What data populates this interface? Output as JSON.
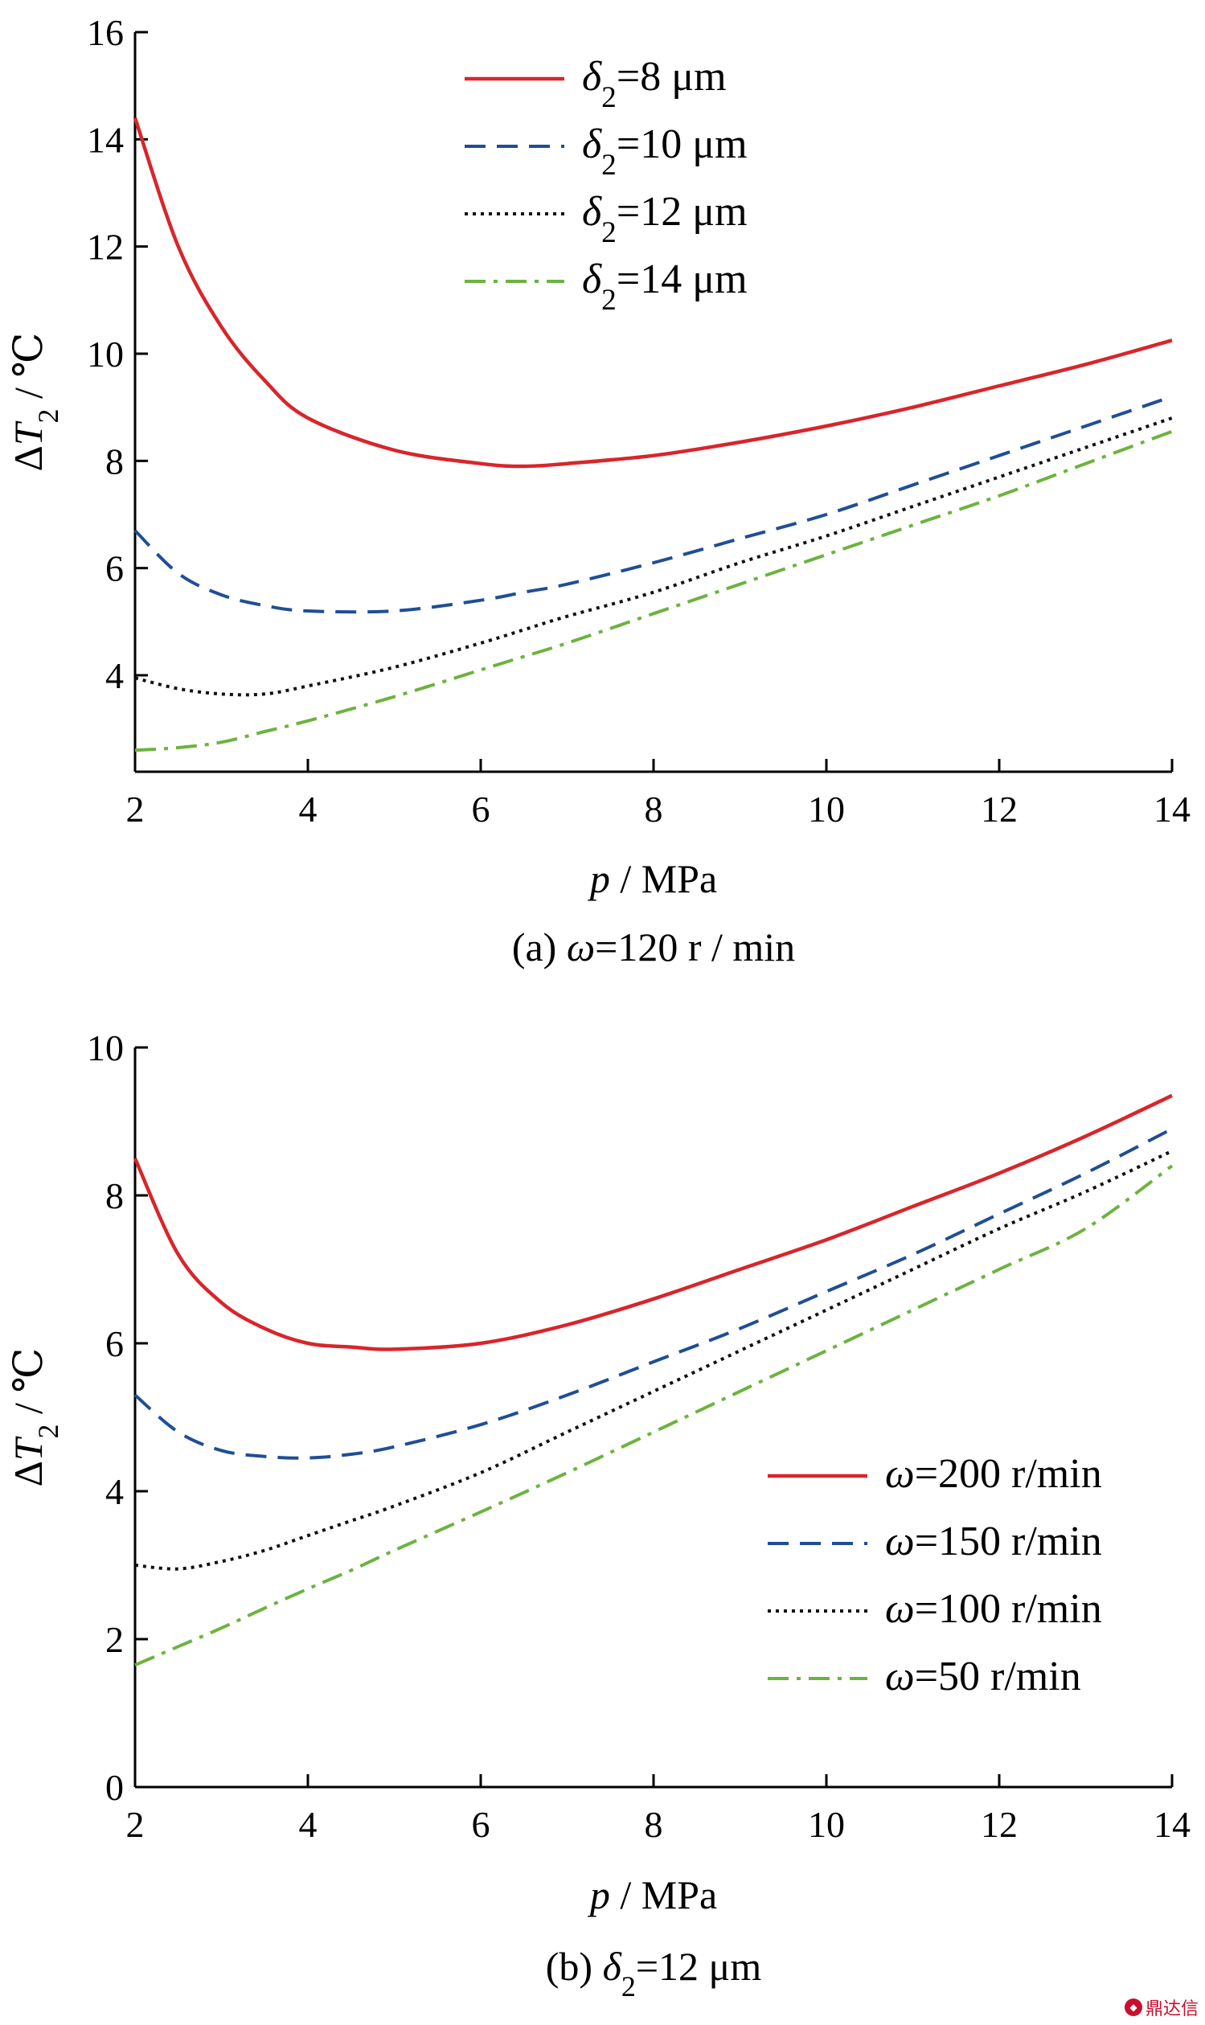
{
  "chart_data": [
    {
      "type": "line",
      "ylabel": "ΔT2 / ℃",
      "xlabel": "p / MPa",
      "caption": "(a) ω=120 r / min",
      "xlim": [
        2,
        14
      ],
      "ylim": [
        2.2,
        16
      ],
      "xticks": [
        2,
        4,
        6,
        8,
        10,
        12,
        14
      ],
      "yticks": [
        4,
        6,
        8,
        10,
        12,
        14,
        16
      ],
      "legend_position": "top-center",
      "x": [
        2,
        2.5,
        3,
        3.5,
        4,
        5,
        6,
        6.5,
        7,
        8,
        9,
        10,
        11,
        12,
        13,
        14
      ],
      "series": [
        {
          "name": "δ2=8 μm",
          "color": "#d7262b",
          "dash": "solid",
          "values": [
            14.4,
            12.0,
            10.5,
            9.5,
            8.8,
            8.2,
            7.95,
            7.9,
            7.95,
            8.1,
            8.35,
            8.65,
            9.0,
            9.4,
            9.8,
            10.25
          ]
        },
        {
          "name": "δ2=10 μm",
          "color": "#1f4e96",
          "dash": "dashed",
          "values": [
            6.7,
            5.9,
            5.5,
            5.3,
            5.2,
            5.2,
            5.4,
            5.55,
            5.7,
            6.1,
            6.55,
            7.0,
            7.55,
            8.1,
            8.65,
            9.2
          ]
        },
        {
          "name": "δ2=12 μm",
          "color": "#111111",
          "dash": "dotted",
          "values": [
            3.95,
            3.75,
            3.65,
            3.65,
            3.8,
            4.15,
            4.6,
            4.85,
            5.1,
            5.55,
            6.1,
            6.6,
            7.15,
            7.7,
            8.25,
            8.8
          ]
        },
        {
          "name": "δ2=14 μm",
          "color": "#6cb33f",
          "dash": "dashdot",
          "values": [
            2.6,
            2.65,
            2.75,
            2.95,
            3.15,
            3.6,
            4.1,
            4.35,
            4.6,
            5.15,
            5.7,
            6.25,
            6.8,
            7.35,
            7.95,
            8.55
          ]
        }
      ]
    },
    {
      "type": "line",
      "ylabel": "ΔT2 / ℃",
      "xlabel": "p / MPa",
      "caption": "(b)  δ2=12 μm",
      "xlim": [
        2,
        14
      ],
      "ylim": [
        0,
        10
      ],
      "xticks": [
        2,
        4,
        6,
        8,
        10,
        12,
        14
      ],
      "yticks": [
        0,
        2,
        4,
        6,
        8,
        10
      ],
      "legend_position": "bottom-right",
      "x": [
        2,
        2.5,
        3,
        3.5,
        4,
        4.5,
        5,
        6,
        7,
        8,
        9,
        10,
        11,
        12,
        13,
        14
      ],
      "series": [
        {
          "name": "ω=200 r/min",
          "color": "#d7262b",
          "dash": "solid",
          "values": [
            8.5,
            7.2,
            6.55,
            6.2,
            6.0,
            5.95,
            5.92,
            6.0,
            6.25,
            6.6,
            7.0,
            7.4,
            7.85,
            8.3,
            8.8,
            9.35
          ]
        },
        {
          "name": "ω=150 r/min",
          "color": "#1f4e96",
          "dash": "dashed",
          "values": [
            5.3,
            4.8,
            4.55,
            4.47,
            4.45,
            4.5,
            4.6,
            4.9,
            5.3,
            5.75,
            6.2,
            6.7,
            7.2,
            7.75,
            8.3,
            8.9
          ]
        },
        {
          "name": "ω=100 r/min",
          "color": "#111111",
          "dash": "dotted",
          "values": [
            3.0,
            2.95,
            3.05,
            3.2,
            3.4,
            3.6,
            3.8,
            4.25,
            4.8,
            5.35,
            5.9,
            6.45,
            7.0,
            7.55,
            8.05,
            8.6
          ]
        },
        {
          "name": "ω=50 r/min",
          "color": "#6cb33f",
          "dash": "dashdot",
          "values": [
            1.65,
            1.9,
            2.15,
            2.42,
            2.68,
            2.93,
            3.2,
            3.72,
            4.25,
            4.8,
            5.35,
            5.9,
            6.45,
            7.0,
            7.55,
            8.4
          ]
        }
      ]
    }
  ],
  "watermark": {
    "text": "鼎达信"
  }
}
